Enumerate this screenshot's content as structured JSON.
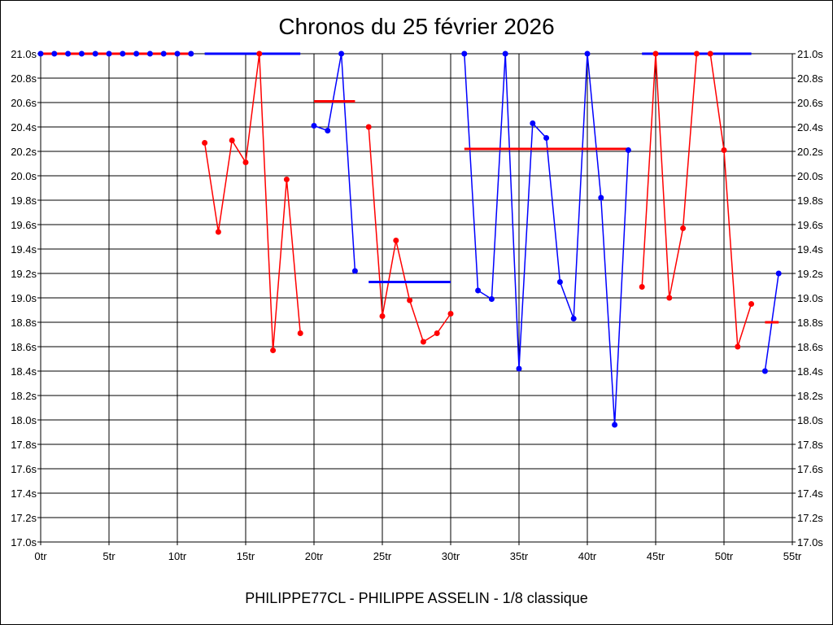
{
  "chart_data": {
    "type": "line",
    "title": "Chronos du 25 février 2026",
    "subtitle": "PHILIPPE77CL - PHILIPPE ASSELIN - 1/8 classique",
    "xlim": [
      0,
      55
    ],
    "ylim": [
      17.0,
      21.0
    ],
    "x_ticks": [
      "0tr",
      "5tr",
      "10tr",
      "15tr",
      "20tr",
      "25tr",
      "30tr",
      "35tr",
      "40tr",
      "45tr",
      "50tr",
      "55tr"
    ],
    "y_ticks": [
      "21.0s",
      "20.8s",
      "20.6s",
      "20.4s",
      "20.2s",
      "20.0s",
      "19.8s",
      "19.6s",
      "19.4s",
      "19.2s",
      "19.0s",
      "18.8s",
      "18.6s",
      "18.4s",
      "18.2s",
      "18.0s",
      "17.8s",
      "17.6s",
      "17.4s",
      "17.2s",
      "17.0s"
    ],
    "y_ticks_both_sides": true,
    "grid": true,
    "colors": {
      "blue": "#0000ff",
      "red": "#ff0000"
    },
    "segments": [
      {
        "color": "blue",
        "avg_color": "red",
        "average": 21.0,
        "laps": [
          0,
          1,
          2,
          3,
          4,
          5,
          6,
          7,
          8,
          9,
          10,
          11
        ],
        "times": [
          21.0,
          21.0,
          21.0,
          21.0,
          21.0,
          21.0,
          21.0,
          21.0,
          21.0,
          21.0,
          21.0,
          21.0
        ]
      },
      {
        "color": "red",
        "avg_color": "blue",
        "average": 21.0,
        "laps": [
          12,
          13,
          14,
          15,
          16,
          17,
          18,
          19
        ],
        "times": [
          20.27,
          19.54,
          20.29,
          20.11,
          21.0,
          18.57,
          19.97,
          18.71
        ]
      },
      {
        "color": "blue",
        "avg_color": "red",
        "average": 20.61,
        "laps": [
          20,
          21,
          22,
          23
        ],
        "times": [
          20.41,
          20.37,
          21.0,
          19.22
        ]
      },
      {
        "color": "red",
        "avg_color": "blue",
        "average": 19.13,
        "laps": [
          24,
          25,
          26,
          27,
          28,
          29,
          30
        ],
        "times": [
          20.4,
          18.85,
          19.47,
          18.98,
          18.64,
          18.71,
          18.87
        ]
      },
      {
        "color": "blue",
        "avg_color": "red",
        "average": 20.22,
        "laps": [
          31,
          32,
          33,
          34,
          35,
          36,
          37,
          38,
          39,
          40,
          41,
          42,
          43
        ],
        "times": [
          21.0,
          19.06,
          18.99,
          21.0,
          18.42,
          20.43,
          20.31,
          19.13,
          18.83,
          21.0,
          19.82,
          17.96,
          20.21
        ]
      },
      {
        "color": "red",
        "avg_color": "blue",
        "average": 21.0,
        "laps": [
          44,
          45,
          46,
          47,
          48,
          49,
          50,
          51,
          52
        ],
        "times": [
          19.09,
          21.0,
          19.0,
          19.57,
          21.0,
          21.0,
          20.21,
          18.6,
          18.95
        ]
      },
      {
        "color": "blue",
        "avg_color": "red",
        "average": 18.8,
        "laps": [
          53,
          54
        ],
        "times": [
          18.4,
          19.2
        ]
      }
    ]
  }
}
